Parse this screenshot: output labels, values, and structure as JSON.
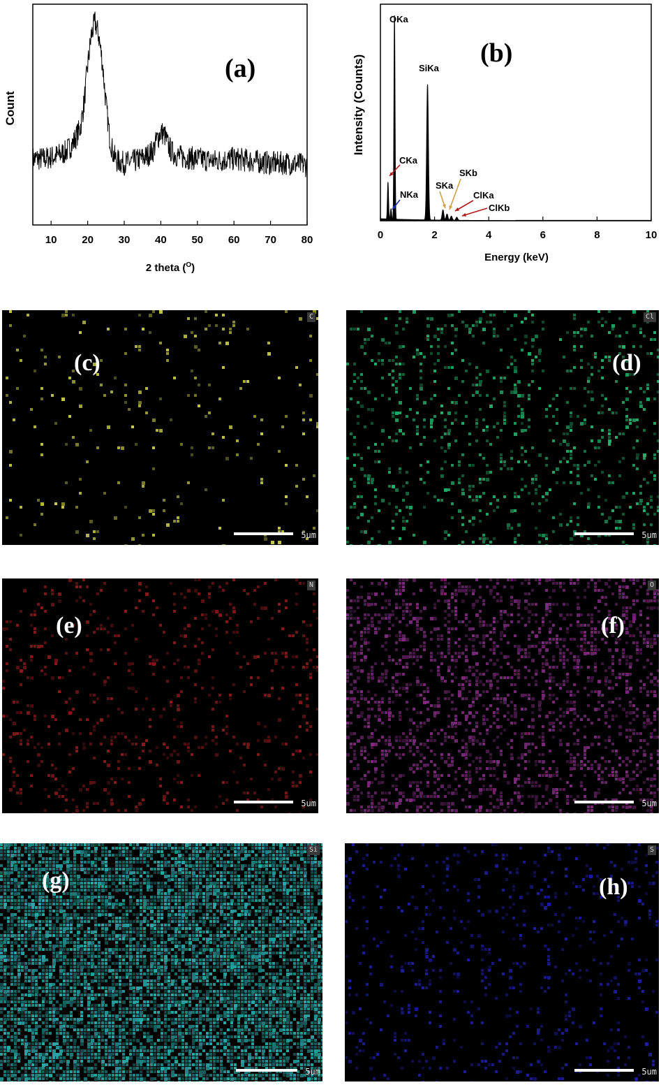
{
  "chart_data": [
    {
      "panel": "(a)",
      "type": "line",
      "xlabel": "2 theta (°)",
      "xlabel_parts": [
        "2 theta (",
        "O",
        ")"
      ],
      "ylabel": "Count",
      "xlim": [
        5,
        80
      ],
      "xticks": [
        10,
        20,
        30,
        40,
        50,
        60,
        70,
        80
      ],
      "x": [
        5,
        8,
        11,
        14,
        16,
        18,
        19,
        20,
        21,
        22,
        23,
        24,
        25,
        26,
        27,
        28,
        30,
        33,
        36,
        38,
        39,
        40,
        41,
        42,
        43,
        45,
        50,
        55,
        60,
        65,
        70,
        75,
        80
      ],
      "y": [
        0.3,
        0.3,
        0.31,
        0.33,
        0.37,
        0.44,
        0.55,
        0.72,
        0.86,
        0.92,
        0.86,
        0.74,
        0.55,
        0.4,
        0.32,
        0.29,
        0.28,
        0.29,
        0.31,
        0.34,
        0.39,
        0.42,
        0.41,
        0.36,
        0.33,
        0.31,
        0.3,
        0.29,
        0.3,
        0.29,
        0.28,
        0.28,
        0.27
      ]
    },
    {
      "panel": "(b)",
      "type": "line",
      "xlabel": "Energy (keV)",
      "ylabel": "Intensity (Counts)",
      "xlim": [
        0,
        10
      ],
      "xticks": [
        0,
        2,
        4,
        6,
        8,
        10
      ],
      "peaks": [
        {
          "label": "CKa",
          "x": 0.28,
          "y": 0.18
        },
        {
          "label": "NKa",
          "x": 0.39,
          "y": 0.05
        },
        {
          "label": "OKa",
          "x": 0.52,
          "y": 1.0
        },
        {
          "label": "SiKa",
          "x": 1.74,
          "y": 0.66
        },
        {
          "label": "SKa",
          "x": 2.31,
          "y": 0.05
        },
        {
          "label": "SKb",
          "x": 2.46,
          "y": 0.03
        },
        {
          "label": "ClKa",
          "x": 2.62,
          "y": 0.02
        },
        {
          "label": "ClKb",
          "x": 2.82,
          "y": 0.015
        }
      ]
    }
  ],
  "maps": [
    {
      "panel": "(c)",
      "element": "C",
      "scale": "5um",
      "color": "#c8c84a",
      "density": 0.035
    },
    {
      "panel": "(d)",
      "element": "Cl",
      "scale": "5um",
      "color": "#23b06a",
      "density": 0.13
    },
    {
      "panel": "(e)",
      "element": "N",
      "scale": "5um",
      "color": "#8a1a1a",
      "density": 0.1
    },
    {
      "panel": "(f)",
      "element": "O",
      "scale": "5um",
      "color": "#7d2a7d",
      "density": 0.3
    },
    {
      "panel": "(g)",
      "element": "Si",
      "scale": "5um",
      "color": "#2aa8a8",
      "density": 0.75
    },
    {
      "panel": "(h)",
      "element": "S",
      "scale": "5um",
      "color": "#1d1d9e",
      "density": 0.09
    }
  ]
}
